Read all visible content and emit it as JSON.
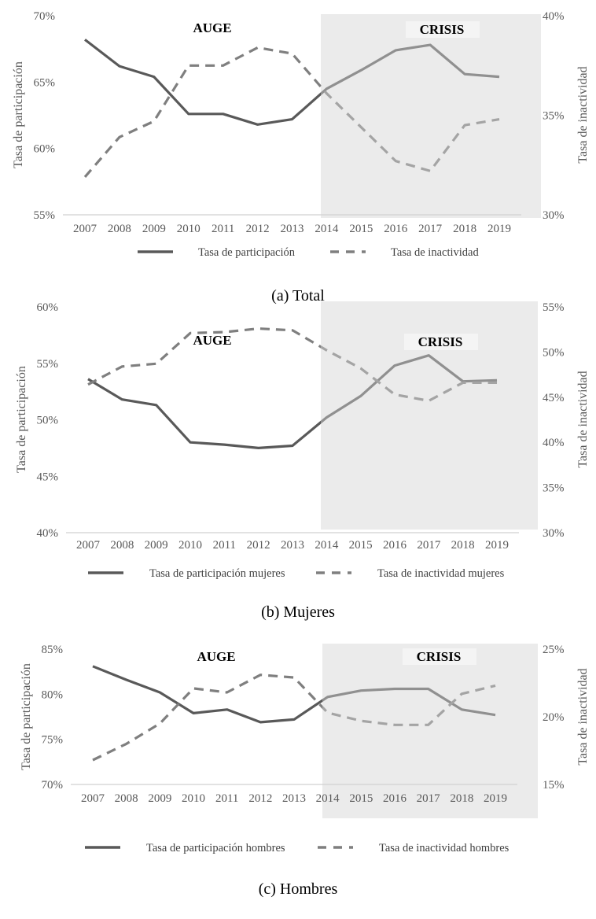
{
  "chart_data": [
    {
      "type": "line",
      "caption": "(a)  Total",
      "categories": [
        "2007",
        "2008",
        "2009",
        "2010",
        "2011",
        "2012",
        "2013",
        "2014",
        "2015",
        "2016",
        "2017",
        "2018",
        "2019"
      ],
      "ylabel": "Tasa de participación",
      "ylabel_right": "Tasa de inactividad",
      "ylim": [
        55,
        70
      ],
      "yticks": [
        "55%",
        "60%",
        "65%",
        "70%"
      ],
      "ytick_values": [
        55,
        60,
        65,
        70
      ],
      "ylim_right": [
        30,
        40
      ],
      "yticks_right": [
        "30%",
        "35%",
        "40%"
      ],
      "ytick_values_right": [
        30,
        35,
        40
      ],
      "legend_position": "bottom",
      "annotations": {
        "left": "AUGE",
        "right": "CRISIS"
      },
      "shaded_region": {
        "from": "2014",
        "to": "2019"
      },
      "series": [
        {
          "name": "Tasa de participación",
          "axis": "left",
          "style": "solid",
          "color": "#595959",
          "values": [
            68.2,
            66.2,
            65.4,
            62.6,
            62.6,
            61.8,
            62.2,
            64.5,
            65.9,
            67.4,
            67.8,
            65.6,
            65.4
          ]
        },
        {
          "name": "Tasa de inactividad",
          "axis": "right",
          "style": "dashed",
          "color": "#7f7f7f",
          "values": [
            31.9,
            33.9,
            34.7,
            37.5,
            37.5,
            38.4,
            38.1,
            36.1,
            34.4,
            32.7,
            32.2,
            34.5,
            34.8
          ]
        }
      ]
    },
    {
      "type": "line",
      "caption": "(b)  Mujeres",
      "categories": [
        "2007",
        "2008",
        "2009",
        "2010",
        "2011",
        "2012",
        "2013",
        "2014",
        "2015",
        "2016",
        "2017",
        "2018",
        "2019"
      ],
      "ylabel": "Tasa de participación",
      "ylabel_right": "Tasa de inactividad",
      "ylim": [
        40,
        60
      ],
      "yticks": [
        "40%",
        "45%",
        "50%",
        "55%",
        "60%"
      ],
      "ytick_values": [
        40,
        45,
        50,
        55,
        60
      ],
      "ylim_right": [
        30,
        55
      ],
      "yticks_right": [
        "30%",
        "35%",
        "40%",
        "45%",
        "50%",
        "55%"
      ],
      "ytick_values_right": [
        30,
        35,
        40,
        45,
        50,
        55
      ],
      "legend_position": "bottom",
      "annotations": {
        "left": "AUGE",
        "right": "CRISIS"
      },
      "shaded_region": {
        "from": "2014",
        "to": "2019"
      },
      "series": [
        {
          "name": "Tasa de participación mujeres",
          "axis": "left",
          "style": "solid",
          "color": "#595959",
          "values": [
            53.6,
            51.8,
            51.3,
            48.0,
            47.8,
            47.5,
            47.7,
            50.2,
            52.1,
            54.8,
            55.7,
            53.4,
            53.5
          ]
        },
        {
          "name": "Tasa de inactividad mujeres",
          "axis": "right",
          "style": "dashed",
          "color": "#7f7f7f",
          "values": [
            46.4,
            48.4,
            48.7,
            52.1,
            52.2,
            52.6,
            52.4,
            50.2,
            48.2,
            45.3,
            44.6,
            46.6,
            46.6
          ]
        }
      ]
    },
    {
      "type": "line",
      "caption": "(c)  Hombres",
      "categories": [
        "2007",
        "2008",
        "2009",
        "2010",
        "2011",
        "2012",
        "2013",
        "2014",
        "2015",
        "2016",
        "2017",
        "2018",
        "2019"
      ],
      "ylabel": "Tasa de participación",
      "ylabel_right": "Tasa de inactividad",
      "ylim": [
        70,
        85
      ],
      "yticks": [
        "70%",
        "75%",
        "80%",
        "85%"
      ],
      "ytick_values": [
        70,
        75,
        80,
        85
      ],
      "ylim_right": [
        15,
        25
      ],
      "yticks_right": [
        "15%",
        "20%",
        "25%"
      ],
      "ytick_values_right": [
        15,
        20,
        25
      ],
      "legend_position": "bottom",
      "annotations": {
        "left": "AUGE",
        "right": "CRISIS"
      },
      "shaded_region": {
        "from": "2014",
        "to": "2019"
      },
      "series": [
        {
          "name": "Tasa de participación hombres",
          "axis": "left",
          "style": "solid",
          "color": "#595959",
          "values": [
            83.1,
            81.6,
            80.2,
            77.9,
            78.3,
            76.9,
            77.2,
            79.7,
            80.4,
            80.6,
            80.6,
            78.3,
            77.7
          ]
        },
        {
          "name": "Tasa de inactividad hombres",
          "axis": "right",
          "style": "dashed",
          "color": "#7f7f7f",
          "values": [
            16.8,
            18.0,
            19.5,
            22.1,
            21.8,
            23.1,
            22.9,
            20.3,
            19.7,
            19.4,
            19.4,
            21.7,
            22.3
          ]
        }
      ]
    }
  ]
}
